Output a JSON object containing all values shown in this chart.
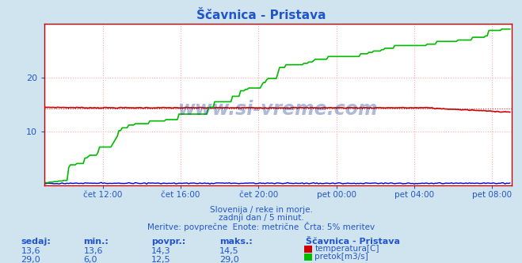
{
  "title": "Ščavnica - Pristava",
  "bg_color": "#d0e4f0",
  "plot_bg_color": "#ffffff",
  "title_color": "#2255cc",
  "grid_color": "#ffaaaa",
  "axis_color": "#cc0000",
  "text_color": "#2255cc",
  "xlabel_ticks": [
    "čet 12:00",
    "čet 16:00",
    "čet 20:00",
    "pet 00:00",
    "pet 04:00",
    "pet 08:00"
  ],
  "ylabel_ticks": [
    10,
    20
  ],
  "ylim": [
    0,
    30
  ],
  "xlim": [
    0,
    288
  ],
  "temp_color": "#cc0000",
  "flow_color": "#00bb00",
  "height_color": "#0000cc",
  "watermark_text": "www.si-vreme.com",
  "watermark_color": "#1a3a8a",
  "subtitle1": "Slovenija / reke in morje.",
  "subtitle2": "zadnji dan / 5 minut.",
  "subtitle3": "Meritve: povprečne  Enote: metrične  Črta: 5% meritev",
  "table_headers": [
    "sedaj:",
    "min.:",
    "povpr.:",
    "maks.:"
  ],
  "table_row1": [
    "13,6",
    "13,6",
    "14,3",
    "14,5"
  ],
  "table_row2": [
    "29,0",
    "6,0",
    "12,5",
    "29,0"
  ],
  "legend_label1": "temperatura[C]",
  "legend_label2": "pretok[m3/s]",
  "station_label": "Ščavnica - Pristava",
  "n_points": 288,
  "temp_avg": 14.3,
  "flow_start": 1.0,
  "flow_end": 29.0
}
